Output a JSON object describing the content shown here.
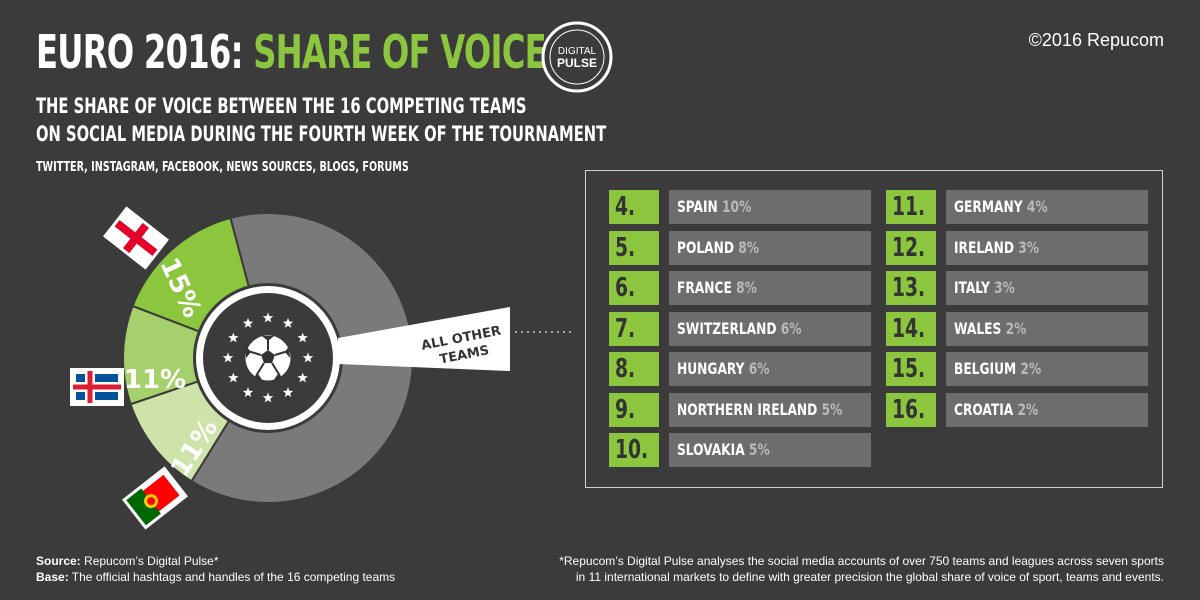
{
  "header": {
    "title_main": "EURO 2016:",
    "title_accent": "SHARE OF VOICE",
    "copyright": "©2016 Repucom",
    "subtitle_line1": "THE SHARE OF VOICE BETWEEN THE 16 COMPETING TEAMS",
    "subtitle_line2": "ON SOCIAL MEDIA DURING THE FOURTH WEEK OF THE TOURNAMENT",
    "sources": "TWITTER, INSTAGRAM, FACEBOOK, NEWS SOURCES, BLOGS, FORUMS"
  },
  "logo": {
    "line1": "DIGITAL",
    "line2": "PULSE"
  },
  "colors": {
    "accent": "#8cc63f",
    "background": "#3b3b3b",
    "bar": "#6d6d6d",
    "ring_gray": "#7a7a7a",
    "slice2": "#a6d06c",
    "slice3": "#cde3a9"
  },
  "chart_data": {
    "type": "pie",
    "slices": [
      {
        "label": "15%",
        "value": 15,
        "flag": "england-flag-icon"
      },
      {
        "label": "11%",
        "value": 11,
        "flag": "iceland-flag-icon"
      },
      {
        "label": "11%",
        "value": 11,
        "flag": "portugal-flag-icon"
      },
      {
        "label": "ALL OTHER TEAMS",
        "value": 63
      }
    ],
    "other_label_line1": "ALL OTHER",
    "other_label_line2": "TEAMS"
  },
  "others": {
    "left": [
      {
        "rank": "4.",
        "team": "SPAIN",
        "pct": "10%"
      },
      {
        "rank": "5.",
        "team": "POLAND",
        "pct": "8%"
      },
      {
        "rank": "6.",
        "team": "FRANCE",
        "pct": "8%"
      },
      {
        "rank": "7.",
        "team": "SWITZERLAND",
        "pct": "6%"
      },
      {
        "rank": "8.",
        "team": "HUNGARY",
        "pct": "6%"
      },
      {
        "rank": "9.",
        "team": "NORTHERN IRELAND",
        "pct": "5%"
      },
      {
        "rank": "10.",
        "team": "SLOVAKIA",
        "pct": "5%"
      }
    ],
    "right": [
      {
        "rank": "11.",
        "team": "GERMANY",
        "pct": "4%"
      },
      {
        "rank": "12.",
        "team": "IRELAND",
        "pct": "3%"
      },
      {
        "rank": "13.",
        "team": "ITALY",
        "pct": "3%"
      },
      {
        "rank": "14.",
        "team": "WALES",
        "pct": "2%"
      },
      {
        "rank": "15.",
        "team": "BELGIUM",
        "pct": "2%"
      },
      {
        "rank": "16.",
        "team": "CROATIA",
        "pct": "2%"
      }
    ]
  },
  "footer": {
    "source_label": "Source:",
    "source_text": " Repucom’s Digital Pulse*",
    "base_label": "Base:",
    "base_text": " The official hashtags and handles of the 16 competing teams",
    "note_line1": "*Repucom’s Digital Pulse analyses the social media accounts of over 750 teams and leagues across seven sports",
    "note_line2": "in 11 international markets to define with greater precision the global share of voice of sport, teams and events."
  }
}
